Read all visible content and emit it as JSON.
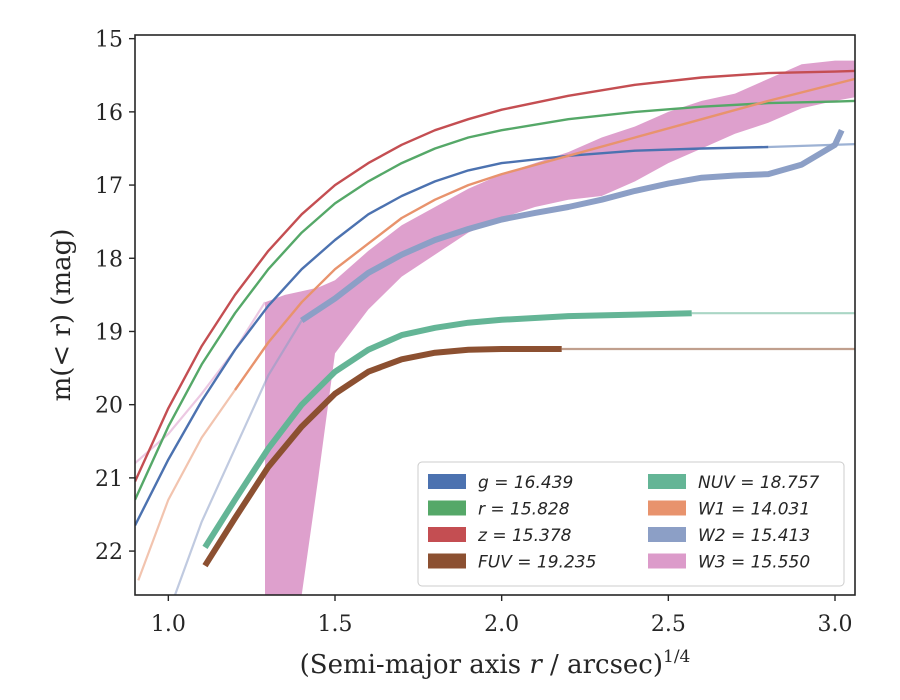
{
  "chart_data": {
    "type": "line",
    "xlabel_main": "(Semi-major axis ",
    "xlabel_var": "r",
    "xlabel_tail": " / arcsec)",
    "xlabel_sup": "1/4",
    "ylabel": "m(< r) (mag)",
    "xlim": [
      0.9,
      3.06
    ],
    "ylim": [
      22.6,
      14.95
    ],
    "y_inverted": true,
    "x_ticks": [
      "1.0",
      "1.5",
      "2.0",
      "2.5",
      "3.0"
    ],
    "y_ticks": [
      "15",
      "16",
      "17",
      "18",
      "19",
      "20",
      "21",
      "22"
    ],
    "legend_position": "lower-right",
    "series": [
      {
        "name": "g = 16.439",
        "color": "#4c72b0",
        "band": false,
        "x": [
          0.9,
          1.0,
          1.1,
          1.2,
          1.3,
          1.4,
          1.5,
          1.6,
          1.7,
          1.8,
          1.9,
          2.0,
          2.2,
          2.4,
          2.6,
          2.8
        ],
        "y": [
          21.65,
          20.75,
          19.95,
          19.25,
          18.65,
          18.15,
          17.75,
          17.4,
          17.15,
          16.95,
          16.8,
          16.7,
          16.6,
          16.53,
          16.5,
          16.48
        ],
        "ext_x": [
          2.8,
          3.06
        ],
        "ext_y": [
          16.48,
          16.44
        ]
      },
      {
        "name": "r = 15.828",
        "color": "#55a868",
        "band": false,
        "x": [
          0.9,
          1.0,
          1.1,
          1.2,
          1.3,
          1.4,
          1.5,
          1.6,
          1.7,
          1.8,
          1.9,
          2.0,
          2.2,
          2.4,
          2.6,
          2.8,
          3.0,
          3.06
        ],
        "y": [
          21.3,
          20.3,
          19.45,
          18.75,
          18.15,
          17.65,
          17.25,
          16.95,
          16.7,
          16.5,
          16.35,
          16.25,
          16.1,
          16.0,
          15.93,
          15.88,
          15.86,
          15.85
        ],
        "ext_x": [],
        "ext_y": []
      },
      {
        "name": "z = 15.378",
        "color": "#c44e52",
        "band": false,
        "x": [
          0.9,
          1.0,
          1.1,
          1.2,
          1.3,
          1.4,
          1.5,
          1.6,
          1.7,
          1.8,
          1.9,
          2.0,
          2.2,
          2.4,
          2.6,
          2.8,
          3.0,
          3.06
        ],
        "y": [
          21.05,
          20.05,
          19.2,
          18.5,
          17.9,
          17.4,
          17.0,
          16.7,
          16.45,
          16.25,
          16.1,
          15.97,
          15.78,
          15.63,
          15.53,
          15.47,
          15.45,
          15.44
        ],
        "ext_x": [],
        "ext_y": []
      },
      {
        "name": "FUV = 19.235",
        "color": "#8c5031",
        "band": false,
        "thick": true,
        "x": [
          1.11,
          1.2,
          1.3,
          1.4,
          1.5,
          1.6,
          1.7,
          1.8,
          1.9,
          2.0,
          2.1,
          2.18
        ],
        "y": [
          22.2,
          21.55,
          20.85,
          20.3,
          19.85,
          19.55,
          19.38,
          19.29,
          19.25,
          19.24,
          19.24,
          19.24
        ],
        "ext_x": [
          2.18,
          3.06
        ],
        "ext_y": [
          19.24,
          19.24
        ]
      },
      {
        "name": "NUV = 18.757",
        "color": "#64b596",
        "band": false,
        "thick": true,
        "x": [
          1.11,
          1.2,
          1.3,
          1.4,
          1.5,
          1.6,
          1.7,
          1.8,
          1.9,
          2.0,
          2.2,
          2.4,
          2.57
        ],
        "y": [
          21.95,
          21.3,
          20.6,
          20.0,
          19.55,
          19.25,
          19.05,
          18.95,
          18.88,
          18.84,
          18.79,
          18.77,
          18.75
        ],
        "ext_x": [
          2.57,
          3.06
        ],
        "ext_y": [
          18.75,
          18.75
        ]
      },
      {
        "name": "W1 = 14.031",
        "color": "#e8936d",
        "band": false,
        "x": [
          1.2,
          1.3,
          1.4,
          1.5,
          1.6,
          1.7,
          1.8,
          1.9,
          2.0,
          2.2,
          2.4,
          2.6,
          2.8,
          3.06
        ],
        "y": [
          19.8,
          19.15,
          18.6,
          18.15,
          17.8,
          17.45,
          17.2,
          17.0,
          16.85,
          16.6,
          16.35,
          16.1,
          15.85,
          15.55
        ],
        "ext_x": [
          0.91,
          1.0,
          1.1,
          1.2
        ],
        "ext_y": [
          22.4,
          21.3,
          20.45,
          19.8
        ]
      },
      {
        "name": "W2 = 15.413",
        "color": "#8c9fc6",
        "band": false,
        "thick": true,
        "x": [
          1.4,
          1.5,
          1.6,
          1.7,
          1.8,
          1.9,
          2.0,
          2.1,
          2.2,
          2.3,
          2.4,
          2.5,
          2.6,
          2.7,
          2.8,
          2.9,
          3.0,
          3.02
        ],
        "y": [
          18.85,
          18.55,
          18.2,
          17.95,
          17.75,
          17.6,
          17.47,
          17.38,
          17.3,
          17.2,
          17.08,
          16.98,
          16.9,
          16.87,
          16.85,
          16.72,
          16.45,
          16.25
        ],
        "ext_x": [
          1.02,
          1.1,
          1.2,
          1.3,
          1.4
        ],
        "ext_y": [
          22.6,
          21.6,
          20.6,
          19.6,
          18.85
        ]
      },
      {
        "name": "W3 = 15.550",
        "color": "#dc9bca",
        "band": true,
        "x": [
          1.29,
          1.35,
          1.4,
          1.45,
          1.5,
          1.6,
          1.7,
          1.8,
          1.9,
          2.0,
          2.1,
          2.2,
          2.3,
          2.4,
          2.5,
          2.6,
          2.7,
          2.8,
          2.9,
          3.0,
          3.06
        ],
        "y_lo": [
          18.6,
          18.5,
          18.45,
          18.4,
          18.3,
          17.9,
          17.55,
          17.3,
          17.05,
          16.85,
          16.7,
          16.55,
          16.35,
          16.2,
          16.0,
          15.85,
          15.75,
          15.55,
          15.35,
          15.3,
          15.3
        ],
        "y_hi": [
          22.6,
          22.6,
          22.6,
          21.0,
          19.3,
          18.7,
          18.25,
          17.95,
          17.65,
          17.45,
          17.3,
          17.2,
          17.15,
          16.95,
          16.7,
          16.5,
          16.3,
          16.15,
          15.95,
          15.85,
          15.8
        ],
        "ext_x": [
          0.9,
          1.0,
          1.1,
          1.2,
          1.29
        ],
        "ext_y": [
          20.8,
          20.4,
          19.85,
          19.25,
          18.6
        ]
      }
    ]
  }
}
